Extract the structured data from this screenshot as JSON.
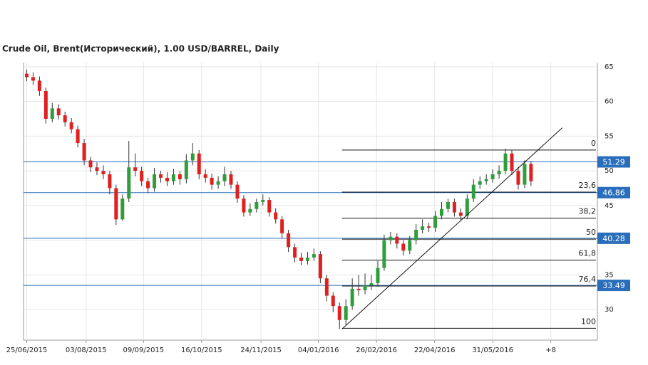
{
  "chart_data": {
    "type": "candlestick",
    "title": "Crude Oil, Brent(Исторический), 1.00 USD/BARREL, Daily",
    "xlim": [
      -0.5,
      89.4
    ],
    "xticks": [
      {
        "value": 0,
        "label": "25/06/2015"
      },
      {
        "value": 9.3,
        "label": "03/08/2015"
      },
      {
        "value": 18.3,
        "label": "09/09/2015"
      },
      {
        "value": 27.4,
        "label": "16/10/2015"
      },
      {
        "value": 36.7,
        "label": "24/11/2015"
      },
      {
        "value": 45.7,
        "label": "04/01/2016"
      },
      {
        "value": 54.8,
        "label": "26/02/2016"
      },
      {
        "value": 63.9,
        "label": "22/04/2016"
      },
      {
        "value": 73,
        "label": "31/05/2016"
      },
      {
        "value": 82.1,
        "label": "+8"
      }
    ],
    "ylim": [
      25.6,
      65.6
    ],
    "yticks": [
      30,
      35,
      40,
      45,
      50,
      55,
      60,
      65
    ],
    "grid": true,
    "up_color": "#2f9e3a",
    "down_color": "#e02020",
    "open": [
      64,
      63.5,
      63,
      61.5,
      57.5,
      59,
      58,
      57,
      56,
      54,
      51.5,
      50.5,
      50,
      49.5,
      47.5,
      43,
      46,
      50.5,
      50,
      48.5,
      47.5,
      49.5,
      49,
      48.5,
      49.5,
      48.8,
      51.5,
      52.5,
      49.5,
      49,
      48,
      48.5,
      49.5,
      48,
      46,
      44,
      44.5,
      45.5,
      45.8,
      44,
      43,
      41,
      39,
      37.5,
      37,
      37.5,
      38,
      34.5,
      32,
      30.5,
      28.5,
      30.5,
      33,
      32.8,
      33.5,
      33.8,
      36,
      40,
      40.5,
      39.5,
      38.5,
      40,
      41.5,
      42,
      41.8,
      43.5,
      44.5,
      45.5,
      44,
      43.5,
      46,
      48,
      48.5,
      48.8,
      49.5,
      50,
      52.5,
      50,
      48,
      51
    ],
    "high": [
      64.6,
      64.2,
      63.6,
      62,
      59.8,
      59.6,
      58.5,
      57.6,
      56.5,
      54.6,
      52,
      51.2,
      50.8,
      50,
      48,
      46.6,
      54.3,
      52.5,
      50.6,
      49,
      50.4,
      50,
      49.8,
      50.3,
      50,
      52.4,
      54,
      53,
      50.2,
      49.6,
      49.2,
      50.6,
      50,
      48.5,
      46.5,
      45.3,
      46,
      46.6,
      46.2,
      44.6,
      43.5,
      41.5,
      39.5,
      38.2,
      38.3,
      38.8,
      38.4,
      35,
      32.5,
      31,
      31.5,
      34.5,
      35,
      35.2,
      35,
      37,
      40.8,
      41.2,
      41,
      40,
      40.6,
      42.3,
      43,
      42.5,
      44.2,
      45.5,
      46,
      46,
      44.6,
      46.6,
      48.8,
      49.2,
      49.5,
      50.2,
      50.8,
      53.2,
      53,
      50.6,
      51.5,
      51.4
    ],
    "low": [
      62.9,
      62.4,
      60.8,
      56.8,
      57,
      57.4,
      56.4,
      55.4,
      53.4,
      50.8,
      49.8,
      49.4,
      48.8,
      46.6,
      42.2,
      42.8,
      45.5,
      49.2,
      47.8,
      46.8,
      47,
      48.3,
      47.8,
      48,
      48,
      48.2,
      50.8,
      48.8,
      48.3,
      47.3,
      47.4,
      47.8,
      47.4,
      45.4,
      43.4,
      43.5,
      44,
      45,
      43.4,
      42.4,
      40.3,
      38.3,
      36.8,
      36.4,
      36.5,
      37,
      33.8,
      31.2,
      29.6,
      27.2,
      27.8,
      30,
      32,
      32.2,
      32.8,
      33.3,
      35.6,
      39.4,
      38.8,
      37.8,
      38,
      39.4,
      41,
      41.2,
      41.2,
      43,
      44,
      43.4,
      42.8,
      43,
      45.5,
      47.4,
      48,
      48.3,
      48.9,
      49.5,
      49.4,
      47.3,
      47.5,
      47.8
    ],
    "close": [
      63.5,
      63,
      61.5,
      57.5,
      59,
      58,
      57,
      56,
      54,
      51.5,
      50.5,
      50,
      49.5,
      47.5,
      43,
      46,
      50.5,
      50,
      48.5,
      47.5,
      49.5,
      49,
      48.5,
      49.5,
      48.8,
      51.5,
      52.5,
      49.5,
      49,
      48,
      48.5,
      49.5,
      48,
      46,
      44,
      44.5,
      45.5,
      45.8,
      44,
      43,
      41,
      39,
      37.5,
      37,
      37.5,
      38,
      34.5,
      32,
      30.5,
      28.5,
      30.5,
      33,
      32.8,
      33.5,
      33.8,
      36,
      40,
      40.5,
      39.5,
      38.5,
      40,
      41.5,
      42,
      41.8,
      43.5,
      44.5,
      45.5,
      44,
      43.5,
      46,
      48,
      48.5,
      48.8,
      49.5,
      50,
      52.5,
      50,
      48,
      51,
      48.5
    ],
    "levels": [
      51.29,
      46.86,
      40.28,
      33.49
    ],
    "level_color": "#2a6ebb",
    "fibonacci": {
      "labels": [
        "0",
        "23,6",
        "38,2",
        "50",
        "61,8",
        "76,4",
        "100"
      ],
      "values": [
        53,
        46.93,
        43.18,
        40.15,
        37.12,
        33.4,
        27.3
      ]
    },
    "trendline": {
      "x": [
        49.4,
        83.9
      ],
      "y": [
        27.2,
        56.2
      ]
    }
  }
}
